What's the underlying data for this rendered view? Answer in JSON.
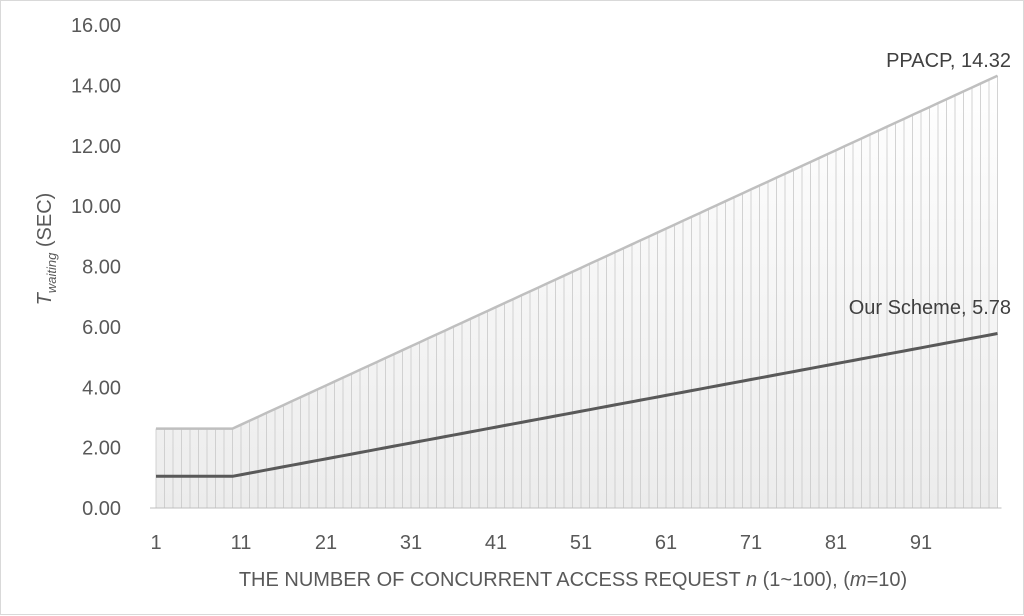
{
  "chart_data": {
    "type": "area",
    "x_start": 1,
    "x_end": 100,
    "xticks": [
      "1",
      "11",
      "21",
      "31",
      "41",
      "51",
      "61",
      "71",
      "81",
      "91"
    ],
    "yticks": [
      "0.00",
      "2.00",
      "4.00",
      "6.00",
      "8.00",
      "10.00",
      "12.00",
      "14.00",
      "16.00"
    ],
    "ylim": [
      0,
      16
    ],
    "xlabel": {
      "prefix": "THE NUMBER OF CONCURRENT ACCESS REQUEST ",
      "n": "n",
      "mid": " (1~100), (",
      "m": "m",
      "suffix": "=10)"
    },
    "ylabel": {
      "T": "T",
      "sub": "waiting",
      "unit": " (SEC)"
    },
    "series": [
      {
        "name": "PPACP",
        "plateau_value": 2.63,
        "plateau_until": 10,
        "end_value": 14.32,
        "annotation": "PPACP, 14.32",
        "color": "#bfbfbf"
      },
      {
        "name": "Our Scheme",
        "plateau_value": 1.05,
        "plateau_until": 10,
        "end_value": 5.78,
        "annotation": "Our Scheme, 5.78",
        "color": "#595959"
      }
    ]
  }
}
